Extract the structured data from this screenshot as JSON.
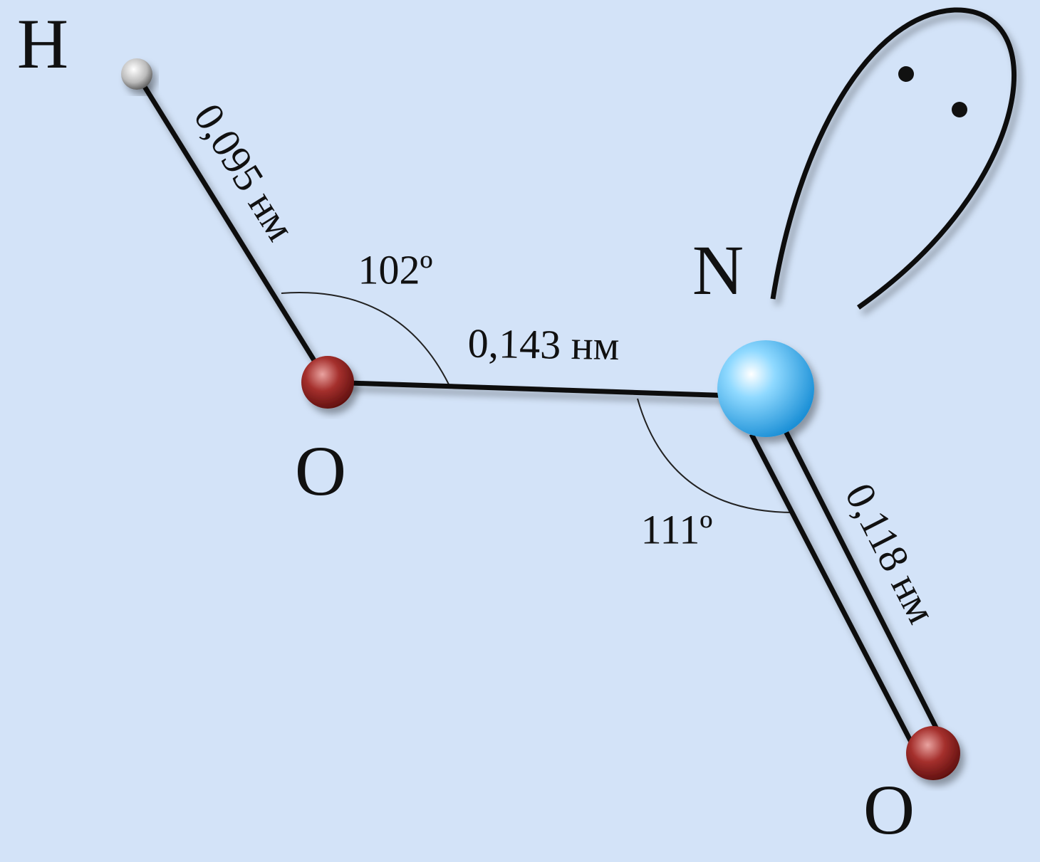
{
  "atoms": [
    {
      "label": "H"
    },
    {
      "label": "O"
    },
    {
      "label": "N"
    },
    {
      "label": "O"
    }
  ],
  "bonds": [
    {
      "label": "0,095 нм"
    },
    {
      "label": "0,143 нм"
    },
    {
      "label": "0,118 нм"
    }
  ],
  "angles": [
    {
      "label": "102º"
    },
    {
      "label": "111º"
    }
  ]
}
